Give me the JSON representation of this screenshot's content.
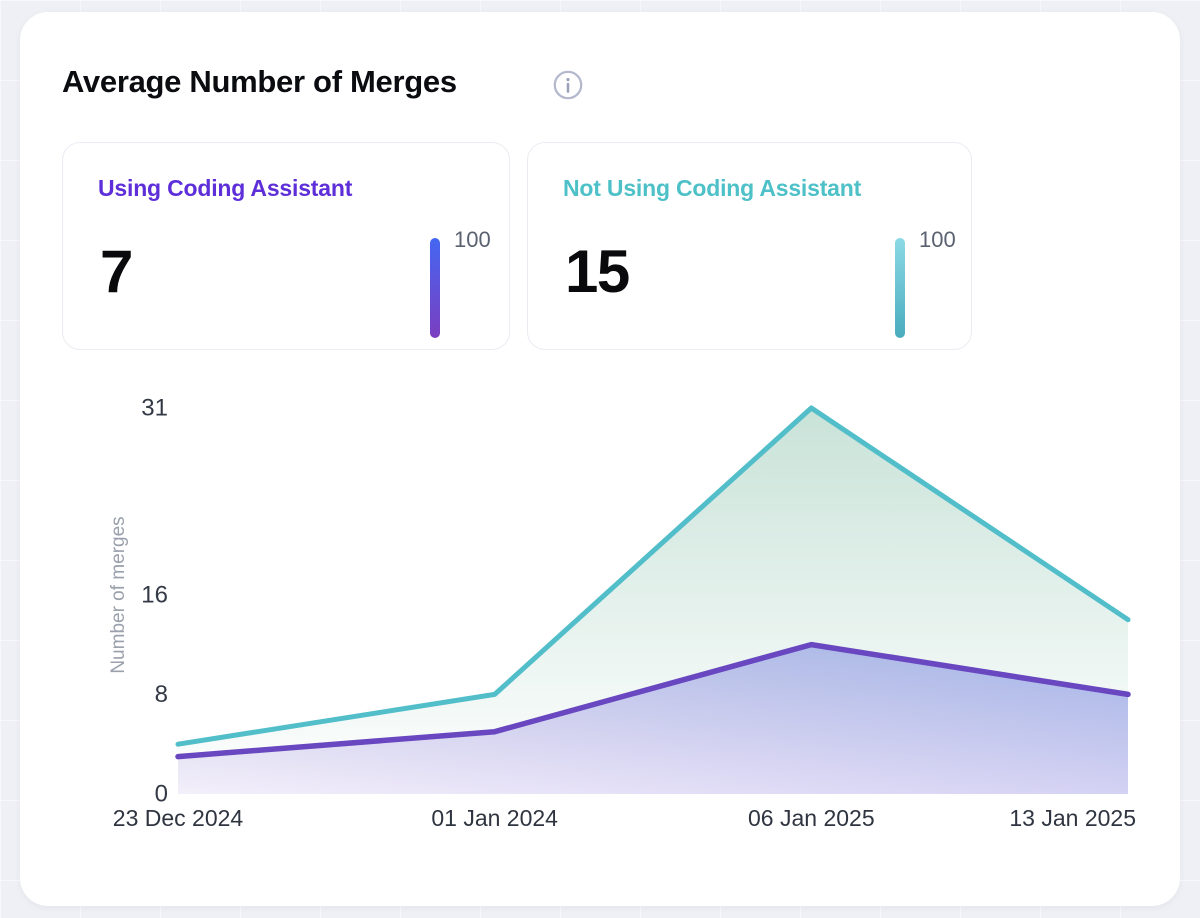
{
  "header": {
    "title": "Average Number of Merges"
  },
  "stats": [
    {
      "label": "Using Coding Assistant",
      "value": "7",
      "max": "100",
      "accent": "#5E2FD9",
      "bar_gradient": [
        "#4467F2",
        "#7B3EC0"
      ]
    },
    {
      "label": "Not Using Coding Assistant",
      "value": "15",
      "max": "100",
      "accent": "#4DC0C8",
      "bar_gradient": [
        "#8BD9E6",
        "#49ACBD"
      ]
    }
  ],
  "chart_data": {
    "type": "area",
    "title": "Average Number of Merges",
    "xlabel": "",
    "ylabel": "Number of merges",
    "categories": [
      "23 Dec 2024",
      "01 Jan 2024",
      "06 Jan 2025",
      "13 Jan 2025"
    ],
    "series": [
      {
        "name": "Using Coding Assistant",
        "color": "#6847C0",
        "values": [
          3,
          5,
          12,
          8
        ]
      },
      {
        "name": "Not Using Coding Assistant",
        "color": "#52BEC9",
        "values": [
          4,
          8,
          31,
          14
        ]
      }
    ],
    "yticks": [
      0,
      8,
      16,
      31
    ],
    "ylim": [
      0,
      31
    ],
    "grid": false,
    "legend": "none"
  }
}
